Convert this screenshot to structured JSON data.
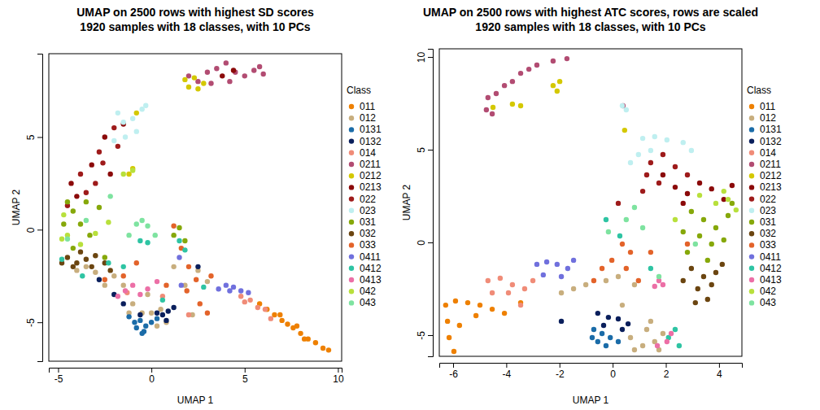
{
  "chart_data": [
    {
      "type": "scatter",
      "title": "UMAP on 2500 rows with highest SD scores",
      "subtitle": "1920 samples with 18 classes, with 10 PCs",
      "x_label": "UMAP 1",
      "y_label": "UMAP 2",
      "legend_title": "Class",
      "legend": "right",
      "grid": false,
      "marker": "circle",
      "xlim": [
        -5.5,
        10.2
      ],
      "ylim": [
        -7.1,
        9.5
      ],
      "xticks": [
        -5,
        0,
        5,
        10
      ],
      "yticks": [
        -5,
        0,
        5
      ],
      "series": [
        {
          "name": "011",
          "color": "#EE8000",
          "x": [
            5.8,
            6.2,
            6.6,
            7.0,
            7.3,
            7.6,
            8.0,
            8.4,
            8.8,
            9.2,
            9.5,
            7.8,
            6.9,
            8.2
          ],
          "values": [
            -4.0,
            -4.3,
            -4.6,
            -4.9,
            -5.1,
            -5.3,
            -5.6,
            -5.9,
            -6.1,
            -6.4,
            -6.5,
            -5.2,
            -4.6,
            -5.9
          ]
        },
        {
          "name": "012",
          "color": "#C8AE7E",
          "x": [
            -1.5,
            -1,
            -0.5,
            0,
            0.5,
            -2,
            -3,
            -3.5,
            -4,
            -1.2,
            0.8,
            1.8,
            2.5,
            3,
            1.2,
            -0.2,
            0.3,
            -2.5,
            2.2
          ],
          "values": [
            -3.0,
            -4,
            -4.5,
            -4.5,
            -4.3,
            -2.5,
            -2.3,
            -2.0,
            -2.2,
            -4.5,
            -5,
            -3,
            -2.2,
            -2.8,
            -2.0,
            -3.5,
            -5.2,
            -3,
            -4.6
          ]
        },
        {
          "name": "0131",
          "color": "#1B6CA8",
          "x": [
            -0.8,
            -0.5,
            -0.3,
            -0.6,
            0,
            0.3,
            -0.9,
            -1.2,
            -0.4
          ],
          "values": [
            -5.3,
            -5.6,
            -5.2,
            -4.9,
            -5,
            -4.8,
            -5.0,
            -4.7,
            -5.5
          ]
        },
        {
          "name": "0132",
          "color": "#0A1F5C",
          "x": [
            0.3,
            0.6,
            0.9,
            1.2,
            -0.6,
            -1.5,
            -2.0,
            0.8,
            -2.8,
            2.5
          ],
          "values": [
            -4.5,
            -4.6,
            -4.4,
            -4.2,
            -4.6,
            -4.0,
            -3.5,
            -4.9,
            -2.7,
            -2.0
          ]
        },
        {
          "name": "014",
          "color": "#F08C78",
          "x": [
            4.8,
            5.3,
            5.7,
            6.1,
            5.0,
            6.4,
            2.0,
            0.6,
            -1.3
          ],
          "values": [
            -3.6,
            -3.8,
            -4.2,
            -4.3,
            -3.9,
            -4.8,
            -4.6,
            -3.6,
            -3.4
          ]
        },
        {
          "name": "0211",
          "color": "#B24C72",
          "x": [
            2.0,
            2.5,
            3.0,
            3.5,
            4.0,
            4.5,
            5.0,
            5.5,
            6.0,
            3.2,
            4.2,
            5.8
          ],
          "values": [
            8.3,
            8.0,
            8.5,
            8.7,
            9.0,
            8.5,
            8.3,
            8.6,
            8.4,
            7.9,
            8.0,
            8.8
          ]
        },
        {
          "name": "0212",
          "color": "#D4C800",
          "x": [
            2.0,
            2.5,
            2.3,
            2.8,
            1.8,
            -1.0,
            -1.2,
            -0.8
          ],
          "values": [
            7.7,
            7.6,
            8.2,
            7.9,
            8.1,
            3.3,
            3.0,
            6.3
          ]
        },
        {
          "name": "0213",
          "color": "#8B0A0A",
          "x": [
            -4.3,
            -3.2,
            -2.5,
            -1.5,
            -2.2,
            -4.0,
            3.8,
            4.4
          ],
          "values": [
            2.5,
            3.5,
            5.0,
            5.7,
            3.0,
            1.8,
            8.3,
            8.6
          ]
        },
        {
          "name": "022",
          "color": "#9E1B1B",
          "x": [
            -3.8,
            -2.8,
            -2.0,
            -3.5,
            -3.0,
            -1.8,
            -4.5,
            -2.6
          ],
          "values": [
            3.0,
            4.2,
            5.5,
            2.0,
            2.5,
            4.5,
            1.3,
            3.6
          ]
        },
        {
          "name": "023",
          "color": "#BFEFF0",
          "x": [
            -1.5,
            -1.0,
            -0.5,
            -0.8,
            -1.8,
            -1.4,
            -0.3,
            -2.0
          ],
          "values": [
            5.8,
            6.0,
            6.5,
            5.3,
            6.3,
            5.0,
            6.7,
            4.8
          ]
        },
        {
          "name": "031",
          "color": "#86A80A",
          "x": [
            -4.5,
            -4.2,
            -3.8,
            -3.5,
            -4.7,
            -3.3,
            1.2,
            1.5,
            -4.2,
            -2.8,
            1.8,
            -2.5
          ],
          "values": [
            1.5,
            1.0,
            0.3,
            1.5,
            0.3,
            -0.3,
            -0.3,
            0.1,
            -1.0,
            1.2,
            -0.6,
            -1.5
          ]
        },
        {
          "name": "032",
          "color": "#6B4510",
          "x": [
            -4.5,
            -4.0,
            -3.5,
            -3.0,
            -4.2,
            -3.2,
            -2.5,
            -4.8,
            -3.8,
            -2.2
          ],
          "values": [
            -1.5,
            -1.8,
            -1.6,
            -1.4,
            -2.0,
            -2.0,
            -1.8,
            -1.8,
            -1.2,
            -2.2
          ]
        },
        {
          "name": "033",
          "color": "#E3632A",
          "x": [
            1.6,
            2.0,
            2.4,
            1.9,
            0.8,
            3.2,
            2.6,
            -1.5,
            -0.8,
            1.2,
            3.0,
            -2.5
          ],
          "values": [
            -1.0,
            -2.0,
            -2.7,
            -3.3,
            -3.0,
            -2.5,
            -4.0,
            -2.5,
            -1.8,
            0.2,
            -4.5,
            -2.7
          ]
        },
        {
          "name": "0411",
          "color": "#7070DD",
          "x": [
            4.0,
            4.4,
            4.8,
            5.2,
            4.2,
            3.6,
            1.5,
            1.6
          ],
          "values": [
            -3.0,
            -3.1,
            -3.3,
            -3.4,
            -3.3,
            -3.2,
            -1.5,
            -3.0
          ]
        },
        {
          "name": "0412",
          "color": "#2EC4A3",
          "x": [
            -0.6,
            -0.2,
            1.5,
            1.8,
            -2.3,
            -1.5,
            0.6,
            -4.8,
            2.8,
            -3.7
          ],
          "values": [
            -0.6,
            -0.7,
            -0.6,
            -1.1,
            -1.8,
            -2.0,
            -3.8,
            -1.6,
            -3.1,
            -2.5
          ]
        },
        {
          "name": "0413",
          "color": "#EC6FA6",
          "x": [
            -1.4,
            -1.0,
            -0.6,
            -0.2,
            -1.8,
            0.3
          ],
          "values": [
            -3.3,
            -3.0,
            -3.5,
            -3.2,
            -3.6,
            -2.8
          ]
        },
        {
          "name": "042",
          "color": "#B8E03C",
          "x": [
            -4.8,
            -4.5,
            -4.7,
            -3.0,
            -1.5,
            -1.0,
            -3.8,
            -2.3
          ],
          "values": [
            -0.5,
            -0.3,
            0.8,
            -0.2,
            3.0,
            3.2,
            -0.8,
            0.4
          ]
        },
        {
          "name": "043",
          "color": "#7EE3A0",
          "x": [
            -0.5,
            -0.2,
            0.2,
            -0.8,
            -2.2,
            -3.5,
            -4.5,
            -1.2
          ],
          "values": [
            0.5,
            0.2,
            -0.3,
            0.3,
            1.8,
            0.5,
            -0.5,
            -0.3
          ]
        }
      ]
    },
    {
      "type": "scatter",
      "title": "UMAP on 2500 rows with highest ATC scores, rows are scaled",
      "subtitle": "1920 samples with 18 classes, with 10 PCs",
      "x_label": "UMAP 1",
      "y_label": "UMAP 2",
      "legend_title": "Class",
      "legend": "right",
      "grid": false,
      "marker": "circle",
      "xlim": [
        -6.52,
        4.86
      ],
      "ylim": [
        -6.14,
        10.44
      ],
      "xticks": [
        -6,
        -4,
        -2,
        0,
        2,
        4
      ],
      "yticks": [
        -5,
        0,
        5,
        10
      ],
      "series": [
        {
          "name": "011",
          "color": "#EE8000",
          "x": [
            -6.28,
            -5.91,
            -5.45,
            -4.99,
            -4.53,
            -4.07,
            -3.46,
            -6.21,
            -6.15,
            -5.97,
            -5.76,
            -5.14
          ],
          "values": [
            -3.38,
            -3.16,
            -3.25,
            -3.38,
            -3.6,
            -3.82,
            -3.25,
            -4.25,
            -5.13,
            -5.88,
            -4.47,
            -3.95
          ]
        },
        {
          "name": "012",
          "color": "#C8AE7E",
          "x": [
            0.67,
            1.13,
            1.58,
            1.89,
            0.82,
            1.28,
            -0.25,
            0.21,
            -1.01,
            -1.47,
            0.82,
            1.43,
            -1.93,
            0.36,
            1.74
          ],
          "values": [
            -5.13,
            -5.57,
            -5.35,
            -4.91,
            -5.79,
            -4.69,
            -2.06,
            -1.84,
            -2.28,
            -2.5,
            -2.28,
            -4.25,
            -2.72,
            -3.38,
            -5.79
          ]
        },
        {
          "name": "0131",
          "color": "#1B6CA8",
          "x": [
            -0.71,
            -0.4,
            -0.56,
            -0.25,
            -0.77,
            -0.09,
            0.21
          ],
          "values": [
            -4.69,
            -4.91,
            -5.35,
            -5.57,
            -5.13,
            -5.13,
            -5.35
          ]
        },
        {
          "name": "0132",
          "color": "#0A1F5C",
          "x": [
            -0.56,
            -0.16,
            0.21,
            0.58,
            -0.34,
            0.36,
            -1.93
          ],
          "values": [
            -3.82,
            -4.04,
            -4.12,
            -4.39,
            -4.47,
            -4.69,
            -4.25
          ]
        },
        {
          "name": "014",
          "color": "#F08C78",
          "x": [
            -4.69,
            -4.23,
            -3.77,
            -3.31,
            -3.92,
            -4.53,
            -3.46,
            -3.0
          ],
          "values": [
            -2.06,
            -1.93,
            -2.28,
            -2.5,
            -2.72,
            -2.72,
            -3.38,
            -2.06
          ]
        },
        {
          "name": "0211",
          "color": "#B24C72",
          "x": [
            -4.69,
            -4.38,
            -4.07,
            -3.46,
            -2.85,
            -2.24,
            -1.72,
            -4.75,
            -4.53,
            -3.77,
            -3.15,
            0.39
          ],
          "values": [
            7.81,
            8.03,
            8.46,
            9.12,
            9.56,
            9.78,
            9.91,
            7.15,
            6.93,
            8.68,
            9.34,
            7.37
          ]
        },
        {
          "name": "0212",
          "color": "#D4C800",
          "x": [
            -2.24,
            -1.99,
            -2.09,
            -3.46,
            -3.77,
            0.45,
            -4.5
          ],
          "values": [
            8.46,
            8.68,
            8.16,
            7.37,
            7.46,
            6.05,
            7.28
          ]
        },
        {
          "name": "0213",
          "color": "#8B0A0A",
          "x": [
            2.35,
            2.81,
            3.27,
            3.72,
            4.18,
            4.49,
            2.65,
            1.89
          ],
          "values": [
            2.98,
            2.63,
            3.2,
            2.89,
            2.32,
            3.07,
            2.11,
            3.64
          ]
        },
        {
          "name": "022",
          "color": "#9E1B1B",
          "x": [
            1.43,
            1.89,
            2.35,
            1.28,
            2.81,
            1.74,
            1.13,
            0.21
          ],
          "values": [
            4.3,
            4.74,
            4.08,
            3.64,
            3.64,
            3.2,
            2.76,
            2.11
          ]
        },
        {
          "name": "023",
          "color": "#BFEFF0",
          "x": [
            1.13,
            1.58,
            2.04,
            2.65,
            0.97,
            1.43,
            0.67,
            0.51,
            0.36,
            2.96
          ],
          "values": [
            5.61,
            5.7,
            5.53,
            5.39,
            4.74,
            4.96,
            4.3,
            7.15,
            7.37,
            4.96
          ]
        },
        {
          "name": "031",
          "color": "#86A80A",
          "x": [
            2.96,
            3.42,
            3.88,
            4.34,
            3.27,
            3.72,
            4.18,
            2.81,
            3.57,
            2.65,
            4.49
          ],
          "values": [
            1.67,
            1.23,
            0.79,
            1.45,
            0.35,
            -0.09,
            0.13,
            -0.53,
            -0.96,
            0.57,
            2.11
          ]
        },
        {
          "name": "032",
          "color": "#6B4510",
          "x": [
            2.96,
            3.42,
            3.72,
            3.2,
            3.57,
            2.65,
            3.88,
            4.12,
            3.11
          ],
          "values": [
            -1.4,
            -1.84,
            -2.28,
            -2.5,
            -3.07,
            -2.06,
            -1.62,
            -1.18,
            -3.25
          ]
        },
        {
          "name": "033",
          "color": "#E3632A",
          "x": [
            0.36,
            0.67,
            -0.03,
            -0.4,
            0.51,
            0.97,
            -0.71,
            1.43,
            2.81
          ],
          "values": [
            -0.09,
            -0.53,
            -0.96,
            -1.4,
            -1.4,
            -2.06,
            -2.06,
            -0.53,
            -0.09
          ]
        },
        {
          "name": "0411",
          "color": "#7070DD",
          "x": [
            -2.85,
            -2.48,
            -2.09,
            -1.69,
            -1.93,
            -2.61,
            -1.47
          ],
          "values": [
            -1.18,
            -1.05,
            -1.18,
            -1.4,
            -1.84,
            -1.75,
            -0.96
          ]
        },
        {
          "name": "0412",
          "color": "#2EC4A3",
          "x": [
            2.35,
            2.1,
            2.5,
            0.27,
            -0.25,
            1.43
          ],
          "values": [
            -4.69,
            -5.13,
            -5.57,
            0.35,
            1.23,
            -1.4
          ]
        },
        {
          "name": "0413",
          "color": "#EC6FA6",
          "x": [
            1.74,
            1.58,
            1.89,
            2.04,
            2.2,
            1.68
          ],
          "values": [
            -2.06,
            -2.37,
            -2.28,
            -5.35,
            -4.91,
            -5.57
          ]
        },
        {
          "name": "042",
          "color": "#B8E03C",
          "x": [
            3.88,
            4.34,
            4.64,
            3.27,
            2.35,
            4.18
          ],
          "values": [
            2.11,
            2.32,
            1.75,
            2.54,
            1.23,
            2.76
          ]
        },
        {
          "name": "043",
          "color": "#7EE3A0",
          "x": [
            -0.16,
            0.51,
            1.13,
            0.82,
            1.74,
            3.11
          ],
          "values": [
            0.57,
            1.23,
            0.79,
            1.89,
            -1.84,
            -0.09
          ]
        }
      ]
    }
  ]
}
